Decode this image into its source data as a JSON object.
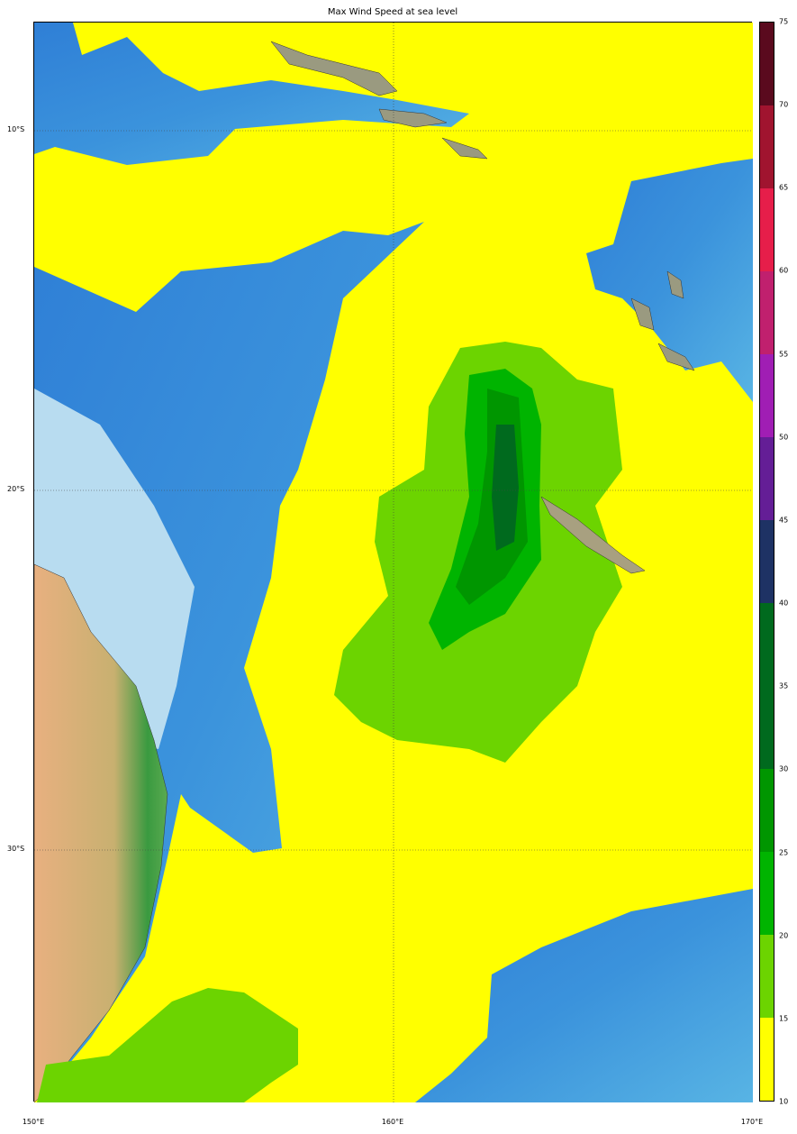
{
  "title": "Max Wind Speed at sea level",
  "map": {
    "projection": "cylindrical",
    "lon_range": [
      150,
      170
    ],
    "lat_range": [
      -37,
      -7
    ],
    "gridlines": "dotted",
    "lat_labels": [
      {
        "lat": -10,
        "label": "10°S"
      },
      {
        "lat": -20,
        "label": "20°S"
      },
      {
        "lat": -30,
        "label": "30°S"
      }
    ],
    "lon_labels": [
      {
        "lon": 150,
        "label": "150°E"
      },
      {
        "lon": 160,
        "label": "160°E"
      },
      {
        "lon": 170,
        "label": "170°E"
      }
    ],
    "background": "shaded relief / bathymetry"
  },
  "colorbar": {
    "ticks": [
      "10",
      "15",
      "20",
      "25",
      "30",
      "35",
      "40",
      "45",
      "50",
      "55",
      "60",
      "65",
      "70",
      "75"
    ],
    "min": 10,
    "max": 75,
    "step": 5,
    "colors": [
      "#ffff00",
      "#6cd400",
      "#00b400",
      "#009600",
      "#006a1e",
      "#006a1e",
      "#1e3264",
      "#641e96",
      "#a01eb4",
      "#c0206e",
      "#e61e4a",
      "#a0142f",
      "#5a0a1e"
    ]
  }
}
